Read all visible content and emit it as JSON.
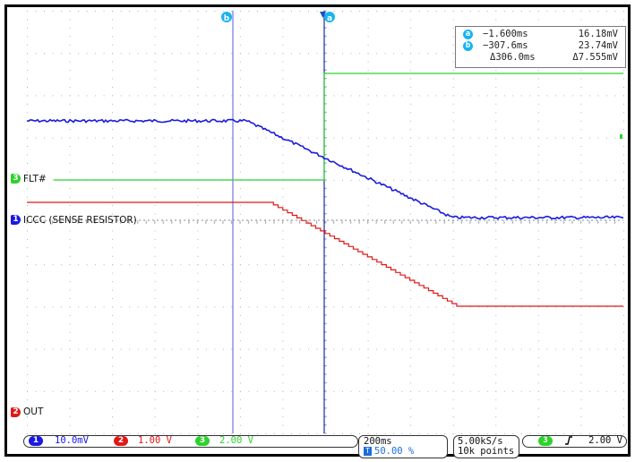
{
  "colors": {
    "ch1": "#1a1ae0",
    "ch2": "#e01818",
    "ch3": "#2ed12e",
    "cursor": "#19b4f0",
    "grid": "#aab4c4"
  },
  "cursors": {
    "a_label": "a",
    "b_label": "b",
    "a_time": "−1.600ms",
    "a_value": "16.18mV",
    "b_time": "−307.6ms",
    "b_value": "23.74mV",
    "delta_time": "Δ306.0ms",
    "delta_value": "Δ7.555mV"
  },
  "channels": {
    "ch3_marker": "3",
    "ch3_label": "FLT#",
    "ch1_marker": "1",
    "ch1_label": "ICCC (SENSE RESISTOR)",
    "ch2_marker": "2",
    "ch2_label": "OUT"
  },
  "bottom": {
    "ch1_num": "1",
    "ch1_scale": "10.0mV",
    "ch2_num": "2",
    "ch2_scale": "1.00 V",
    "ch3_num": "3",
    "ch3_scale": "2.00 V",
    "timebase": "200ms",
    "trigger_pos_icon": "T",
    "trigger_pos": "50.00 %",
    "sample_rate": "5.00kS/s",
    "points": "10k points",
    "trig_ch": "3",
    "trig_edge_icon": "rising-edge-icon",
    "trig_level": "2.00 V"
  }
}
